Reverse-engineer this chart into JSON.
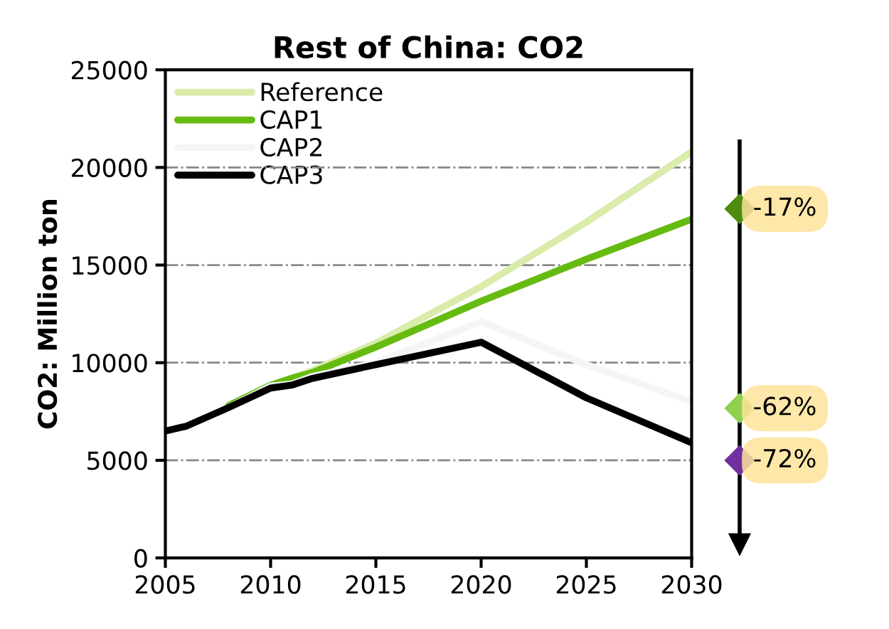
{
  "chart_data": {
    "type": "line",
    "title": "Rest of China: CO2",
    "ylabel": "CO2: Million ton",
    "x": [
      2005,
      2006,
      2008,
      2010,
      2011,
      2012,
      2015,
      2020,
      2025,
      2030
    ],
    "series": [
      {
        "name": "Reference",
        "color": "#d9ecaa",
        "values": [
          null,
          null,
          7700,
          8800,
          9200,
          9600,
          11000,
          13900,
          17200,
          20800
        ]
      },
      {
        "name": "CAP1",
        "color": "#66bb10",
        "values": [
          null,
          null,
          7800,
          8850,
          9200,
          9500,
          10800,
          13150,
          15300,
          17350
        ]
      },
      {
        "name": "CAP2",
        "color": "#f5f5f5",
        "values": [
          null,
          null,
          7700,
          8800,
          8900,
          9300,
          10000,
          12100,
          9900,
          8000
        ]
      },
      {
        "name": "CAP3",
        "color": "#000000",
        "values": [
          6500,
          6750,
          7700,
          8700,
          8850,
          9200,
          9900,
          11050,
          8200,
          5900
        ]
      }
    ],
    "xlim": [
      2005,
      2030
    ],
    "xticks": [
      2005,
      2010,
      2015,
      2020,
      2025,
      2030
    ],
    "ylim": [
      0,
      25000
    ],
    "yticks": [
      0,
      5000,
      10000,
      15000,
      20000,
      25000
    ],
    "grid": "y",
    "legend": "top left",
    "marker": "none",
    "line_style": "solid",
    "annotations": [
      "-17%",
      "-62%",
      "-72%"
    ]
  }
}
